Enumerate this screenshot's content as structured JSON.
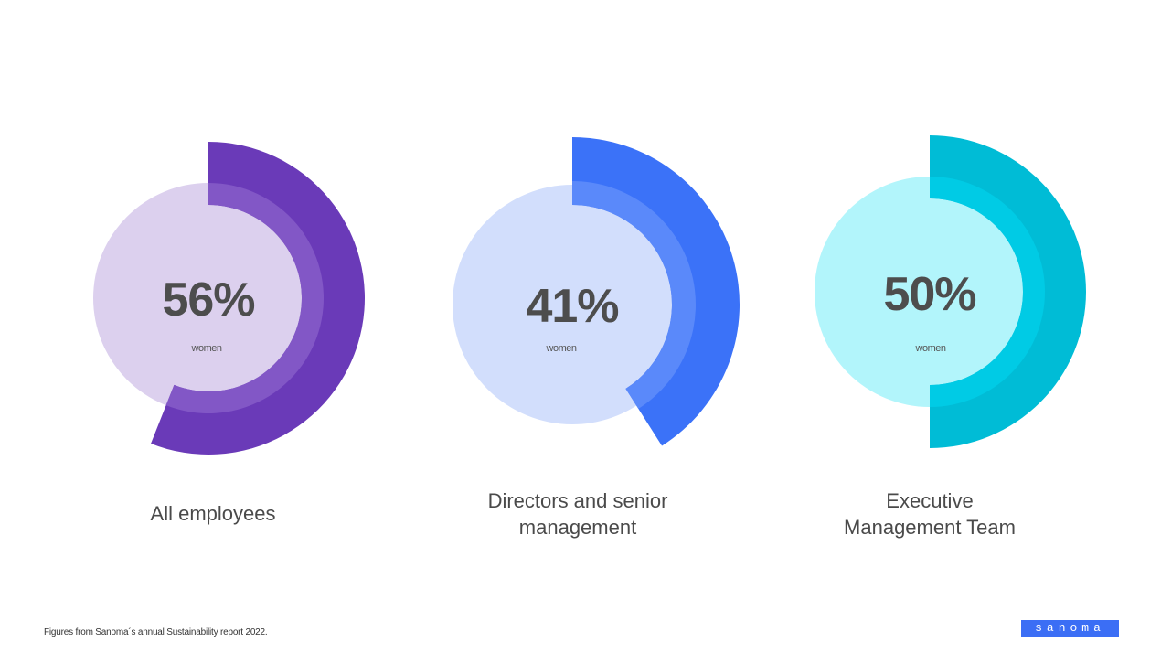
{
  "chart_data": [
    {
      "type": "pie",
      "value_label": "56%",
      "sub_label": "women",
      "category": "All employees",
      "value": 56,
      "colors": {
        "inner": "#dcd0ee",
        "arc": "#6a3ab8",
        "arc_overlay": "#8257c6"
      }
    },
    {
      "type": "pie",
      "value_label": "41%",
      "sub_label": "women",
      "category": "Directors and senior\nmanagement",
      "value": 41,
      "colors": {
        "inner": "#d2defc",
        "arc": "#3b72f8",
        "arc_overlay": "#5a89fa"
      }
    },
    {
      "type": "pie",
      "value_label": "50%",
      "sub_label": "women",
      "category": "Executive\nManagement Team",
      "value": 50,
      "colors": {
        "inner": "#b2f5fb",
        "arc": "#00bcd6",
        "arc_overlay": "#00cbe5"
      }
    }
  ],
  "footnote": "Figures from Sanoma´s annual Sustainability report 2022.",
  "logo_text": "sanoma"
}
